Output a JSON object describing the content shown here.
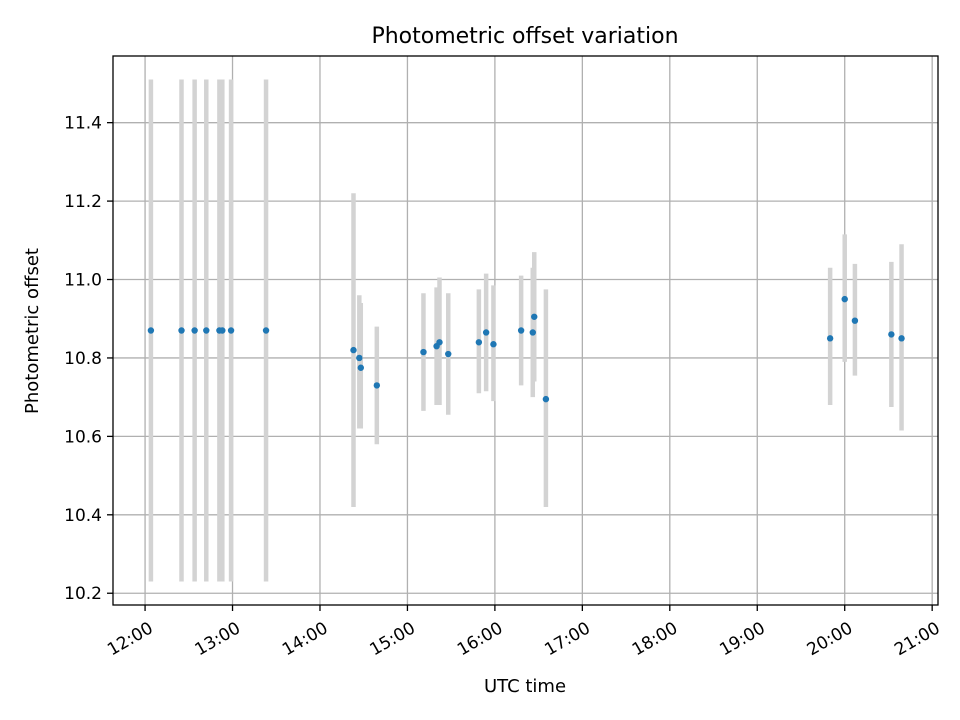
{
  "chart_data": {
    "type": "scatter",
    "title": "Photometric offset variation",
    "xlabel": "UTC time",
    "ylabel": "Photometric offset",
    "x_unit": "UTC time (HH:MM)",
    "xlim": [
      "11:38",
      "21:04"
    ],
    "ylim": [
      10.17,
      11.57
    ],
    "x_ticks": [
      "12:00",
      "13:00",
      "14:00",
      "15:00",
      "16:00",
      "17:00",
      "18:00",
      "19:00",
      "20:00",
      "21:00"
    ],
    "y_ticks": [
      "10.2",
      "10.4",
      "10.6",
      "10.8",
      "11.0",
      "11.2",
      "11.4"
    ],
    "grid": true,
    "marker_color": "#1f77b4",
    "errorbar_color": "#d3d3d3",
    "points": [
      {
        "x": "12:04",
        "y": 10.87,
        "yerr_low": 10.23,
        "yerr_high": 11.51
      },
      {
        "x": "12:25",
        "y": 10.87,
        "yerr_low": 10.23,
        "yerr_high": 11.51
      },
      {
        "x": "12:34",
        "y": 10.87,
        "yerr_low": 10.23,
        "yerr_high": 11.51
      },
      {
        "x": "12:42",
        "y": 10.87,
        "yerr_low": 10.23,
        "yerr_high": 11.51
      },
      {
        "x": "12:51",
        "y": 10.87,
        "yerr_low": 10.23,
        "yerr_high": 11.51
      },
      {
        "x": "12:53",
        "y": 10.87,
        "yerr_low": 10.23,
        "yerr_high": 11.51
      },
      {
        "x": "12:59",
        "y": 10.87,
        "yerr_low": 10.23,
        "yerr_high": 11.51
      },
      {
        "x": "13:23",
        "y": 10.87,
        "yerr_low": 10.23,
        "yerr_high": 11.51
      },
      {
        "x": "14:23",
        "y": 10.82,
        "yerr_low": 10.42,
        "yerr_high": 11.22
      },
      {
        "x": "14:27",
        "y": 10.8,
        "yerr_low": 10.62,
        "yerr_high": 10.96
      },
      {
        "x": "14:28",
        "y": 10.775,
        "yerr_low": 10.62,
        "yerr_high": 10.94
      },
      {
        "x": "14:39",
        "y": 10.73,
        "yerr_low": 10.58,
        "yerr_high": 10.88
      },
      {
        "x": "15:11",
        "y": 10.815,
        "yerr_low": 10.665,
        "yerr_high": 10.965
      },
      {
        "x": "15:20",
        "y": 10.83,
        "yerr_low": 10.68,
        "yerr_high": 10.98
      },
      {
        "x": "15:22",
        "y": 10.84,
        "yerr_low": 10.68,
        "yerr_high": 11.005
      },
      {
        "x": "15:28",
        "y": 10.81,
        "yerr_low": 10.655,
        "yerr_high": 10.965
      },
      {
        "x": "15:49",
        "y": 10.84,
        "yerr_low": 10.71,
        "yerr_high": 10.975
      },
      {
        "x": "15:54",
        "y": 10.865,
        "yerr_low": 10.715,
        "yerr_high": 11.015
      },
      {
        "x": "15:59",
        "y": 10.835,
        "yerr_low": 10.69,
        "yerr_high": 10.985
      },
      {
        "x": "16:18",
        "y": 10.87,
        "yerr_low": 10.73,
        "yerr_high": 11.01
      },
      {
        "x": "16:26",
        "y": 10.865,
        "yerr_low": 10.7,
        "yerr_high": 11.03
      },
      {
        "x": "16:27",
        "y": 10.905,
        "yerr_low": 10.74,
        "yerr_high": 11.07
      },
      {
        "x": "16:35",
        "y": 10.695,
        "yerr_low": 10.42,
        "yerr_high": 10.975
      },
      {
        "x": "19:50",
        "y": 10.85,
        "yerr_low": 10.68,
        "yerr_high": 11.03
      },
      {
        "x": "20:00",
        "y": 10.95,
        "yerr_low": 10.79,
        "yerr_high": 11.115
      },
      {
        "x": "20:07",
        "y": 10.895,
        "yerr_low": 10.755,
        "yerr_high": 11.04
      },
      {
        "x": "20:32",
        "y": 10.86,
        "yerr_low": 10.675,
        "yerr_high": 11.045
      },
      {
        "x": "20:39",
        "y": 10.85,
        "yerr_low": 10.615,
        "yerr_high": 11.09
      }
    ]
  }
}
